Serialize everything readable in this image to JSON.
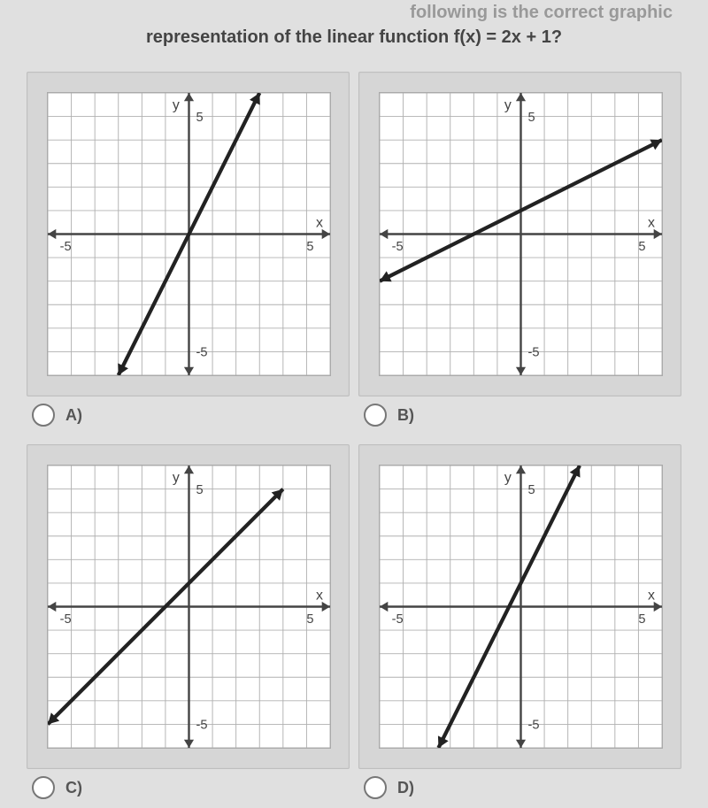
{
  "question": {
    "partial_top": "following is the correct graphic",
    "line2": "representation of the linear function f(x) = 2x + 1?"
  },
  "common_graph": {
    "bg": "#ffffff",
    "grid_color": "#b0b0b0",
    "axis_color": "#444444",
    "line_color": "#222222",
    "line_width": 3.2,
    "arrow_size": 7,
    "xlim": [
      -6,
      6
    ],
    "ylim": [
      -6,
      6
    ],
    "xticks": [
      -5,
      5
    ],
    "yticks": [
      -5,
      5
    ],
    "xlabel": "x",
    "ylabel": "y",
    "label_fontsize": 12,
    "tick_fontsize": 11
  },
  "options": [
    {
      "letter": "A)",
      "line": {
        "x1": -3,
        "y1": -6,
        "x2": 3,
        "y2": 6
      }
    },
    {
      "letter": "B)",
      "line": {
        "x1": -6,
        "y1": -2,
        "x2": 6,
        "y2": 4
      }
    },
    {
      "letter": "C)",
      "line": {
        "x1": -6,
        "y1": -5,
        "x2": 4,
        "y2": 5
      }
    },
    {
      "letter": "D)",
      "line": {
        "x1": -3.5,
        "y1": -6,
        "x2": 2.5,
        "y2": 6
      }
    }
  ]
}
